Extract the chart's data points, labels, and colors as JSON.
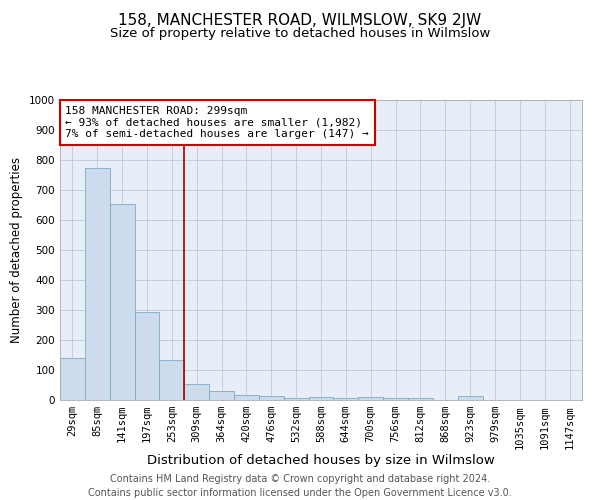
{
  "title": "158, MANCHESTER ROAD, WILMSLOW, SK9 2JW",
  "subtitle": "Size of property relative to detached houses in Wilmslow",
  "xlabel": "Distribution of detached houses by size in Wilmslow",
  "ylabel": "Number of detached properties",
  "categories": [
    "29sqm",
    "85sqm",
    "141sqm",
    "197sqm",
    "253sqm",
    "309sqm",
    "364sqm",
    "420sqm",
    "476sqm",
    "532sqm",
    "588sqm",
    "644sqm",
    "700sqm",
    "756sqm",
    "812sqm",
    "868sqm",
    "923sqm",
    "979sqm",
    "1035sqm",
    "1091sqm",
    "1147sqm"
  ],
  "values": [
    140,
    775,
    655,
    293,
    135,
    55,
    30,
    18,
    15,
    8,
    10,
    8,
    10,
    8,
    7,
    0,
    12,
    0,
    0,
    0,
    0
  ],
  "bar_color": "#cddcec",
  "bar_edge_color": "#7aaac8",
  "vline_x_index": 5,
  "vline_color": "#aa0000",
  "annotation_text": "158 MANCHESTER ROAD: 299sqm\n← 93% of detached houses are smaller (1,982)\n7% of semi-detached houses are larger (147) →",
  "annotation_box_color": "#ffffff",
  "annotation_box_edge_color": "#cc0000",
  "annotation_fontsize": 8.0,
  "ylim": [
    0,
    1000
  ],
  "yticks": [
    0,
    100,
    200,
    300,
    400,
    500,
    600,
    700,
    800,
    900,
    1000
  ],
  "plot_bg_color": "#e8eef8",
  "footer_text": "Contains HM Land Registry data © Crown copyright and database right 2024.\nContains public sector information licensed under the Open Government Licence v3.0.",
  "title_fontsize": 11,
  "subtitle_fontsize": 9.5,
  "xlabel_fontsize": 9.5,
  "ylabel_fontsize": 8.5,
  "tick_fontsize": 7.5,
  "footer_fontsize": 7.0
}
